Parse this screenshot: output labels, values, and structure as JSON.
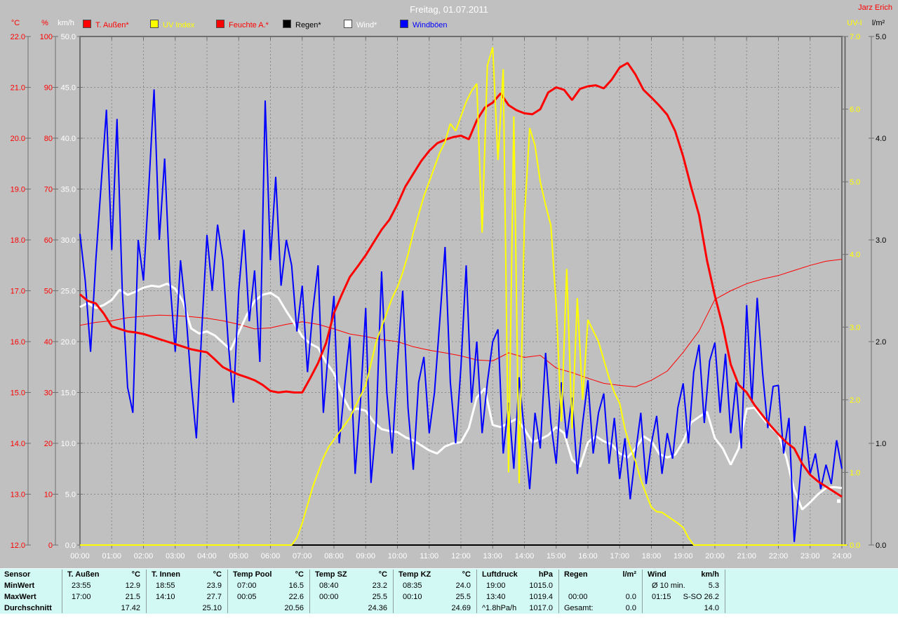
{
  "header": {
    "title": "Freitag, 01.07.2011",
    "author": "Jarz Erich"
  },
  "colors": {
    "background": "#c0c0c0",
    "grid": "#8a8a8a",
    "frame": "#6e6e6e",
    "temp": "#ff0000",
    "humidity": "#ff0000",
    "uv": "#ffff00",
    "rain": "#000000",
    "wind": "#ffffff",
    "gusts": "#0000ff",
    "table_bg": "#d2f9f3",
    "title_text": "#ffffff",
    "author_text": "#ff0000"
  },
  "legend": [
    {
      "label": "T. Außen*",
      "color": "#ff0000"
    },
    {
      "label": "UV Index",
      "color": "#ffff00"
    },
    {
      "label": "Feuchte A.*",
      "color": "#ff0000"
    },
    {
      "label": "Regen*",
      "color": "#000000"
    },
    {
      "label": "Wind*",
      "color": "#ffffff"
    },
    {
      "label": "Windböen",
      "color": "#0000ff"
    }
  ],
  "chart_data": {
    "type": "line",
    "title": "Freitag, 01.07.2011",
    "x_axis": {
      "unit": "time",
      "range_hours": [
        0,
        24
      ],
      "ticks": [
        "00:00",
        "01:00",
        "02:00",
        "03:00",
        "04:00",
        "05:00",
        "06:00",
        "07:00",
        "08:00",
        "09:00",
        "10:00",
        "11:00",
        "12:00",
        "13:00",
        "14:00",
        "15:00",
        "16:00",
        "17:00",
        "18:00",
        "19:00",
        "20:00",
        "21:00",
        "22:00",
        "23:00",
        "24:00"
      ]
    },
    "grid": "dashed, hourly vertical + 10 horizontal divisions",
    "axes": {
      "temp": {
        "unit": "°C",
        "color": "#ff0000",
        "min": 12,
        "max": 22,
        "ticks": [
          "22.0",
          "21.0",
          "20.0",
          "19.0",
          "18.0",
          "17.0",
          "16.0",
          "15.0",
          "14.0",
          "13.0",
          "12.0"
        ]
      },
      "pct": {
        "unit": "%",
        "color": "#ff0000",
        "min": 0,
        "max": 100,
        "ticks": [
          "100",
          "90",
          "80",
          "70",
          "60",
          "50",
          "40",
          "30",
          "20",
          "10",
          "0"
        ]
      },
      "kmh": {
        "unit": "km/h",
        "color": "#ffffff",
        "min": 0,
        "max": 50,
        "ticks": [
          "50.0",
          "45.0",
          "40.0",
          "35.0",
          "30.0",
          "25.0",
          "20.0",
          "15.0",
          "10.0",
          "5.0",
          "0.0"
        ]
      },
      "uv": {
        "unit": "UV-I",
        "color": "#ffff00",
        "min": 0,
        "max": 7,
        "ticks": [
          "7.0",
          "6.0",
          "5.0",
          "4.0",
          "3.0",
          "2.0",
          "1.0",
          "0.0"
        ]
      },
      "lm2": {
        "unit": "l/m²",
        "color": "#000000",
        "min": 0,
        "max": 5,
        "ticks": [
          "5.0",
          "4.0",
          "3.0",
          "2.0",
          "1.0",
          "0.0"
        ]
      }
    },
    "series": [
      {
        "id": "rain",
        "name": "Regen*",
        "color": "#000000",
        "width": 2,
        "axis": "lm2",
        "interval_min": 720,
        "values": [
          0,
          0,
          0
        ]
      },
      {
        "id": "humidity",
        "name": "Feuchte A.*",
        "color": "#ff0000",
        "width": 1,
        "axis": "pct",
        "interval_min": 30,
        "values": [
          43.2,
          43.8,
          44.1,
          44.7,
          45.0,
          45.2,
          45.1,
          44.9,
          44.6,
          44.1,
          43.4,
          42.5,
          42.7,
          43.4,
          43.9,
          43.4,
          42.5,
          41.5,
          41.0,
          40.4,
          40.0,
          39.0,
          38.3,
          37.8,
          37.2,
          36.4,
          36.2,
          37.8,
          36.9,
          37.3,
          34.8,
          33.9,
          32.8,
          31.8,
          31.4,
          31.1,
          32.4,
          34.2,
          37.9,
          42.1,
          48.3,
          50.0,
          51.4,
          52.3,
          53.0,
          54.0,
          55.0,
          55.8,
          56.2
        ]
      },
      {
        "id": "wind",
        "name": "Wind*",
        "color": "#ffffff",
        "width": 3,
        "axis": "kmh",
        "interval_min": 15,
        "values": [
          23.4,
          23.8,
          23.3,
          23.6,
          24.1,
          25.1,
          24.6,
          24.9,
          25.3,
          25.5,
          25.4,
          25.7,
          25.2,
          23.9,
          21.3,
          20.8,
          21.0,
          20.6,
          19.9,
          19.2,
          20.9,
          22.6,
          24.0,
          24.6,
          24.8,
          24.3,
          23.0,
          21.8,
          20.5,
          19.8,
          19.4,
          18.0,
          16.9,
          14.8,
          13.3,
          13.4,
          13.2,
          12.1,
          11.4,
          11.2,
          11.1,
          10.6,
          10.3,
          9.8,
          9.3,
          9.0,
          9.7,
          10.0,
          10.1,
          11.5,
          14.5,
          15.4,
          11.8,
          11.6,
          12.0,
          12.4,
          11.4,
          10.1,
          10.4,
          10.8,
          11.6,
          11.0,
          8.4,
          7.7,
          10.1,
          10.7,
          10.2,
          9.9,
          9.0,
          8.6,
          9.5,
          10.7,
          10.2,
          8.95,
          8.6,
          8.9,
          10.2,
          12.05,
          12.6,
          13.1,
          10.5,
          9.5,
          7.9,
          9.5,
          13.4,
          13.5,
          12.5,
          11.6,
          10.9,
          8.6,
          5.4,
          3.5,
          4.2,
          5.0,
          5.6,
          5.7,
          5.6
        ]
      },
      {
        "id": "gusts",
        "name": "Windböen",
        "color": "#0000ff",
        "width": 2,
        "axis": "kmh",
        "interval_min": 10,
        "values": [
          30.6,
          26,
          19,
          28,
          35.5,
          42.8,
          29,
          41.9,
          25,
          15.5,
          13,
          30,
          26,
          35,
          44.8,
          30,
          38,
          26,
          19,
          28,
          23,
          16,
          10.5,
          21,
          30.5,
          25,
          31.5,
          28,
          20,
          14,
          25,
          31,
          22,
          27,
          18,
          43.7,
          28,
          36.2,
          25.5,
          30,
          27.5,
          21,
          25.5,
          17,
          23,
          27.5,
          13,
          19.5,
          24.5,
          10,
          15.5,
          20.5,
          7,
          14,
          23.3,
          6.1,
          12,
          26.9,
          15,
          9,
          18,
          25,
          13.5,
          7.4,
          16,
          18.5,
          11,
          15,
          22,
          29.3,
          16,
          10,
          17.5,
          27.5,
          14,
          20,
          11,
          16,
          20,
          21.2,
          9,
          14,
          7.5,
          16.5,
          11,
          5.5,
          13,
          9.5,
          18.9,
          12,
          8,
          16,
          10.5,
          14.5,
          7,
          12,
          16.2,
          9,
          13,
          14.9,
          8,
          12.5,
          6.5,
          10.5,
          4.5,
          9,
          13,
          6,
          10,
          12.7,
          7,
          11,
          8.5,
          13.5,
          15.9,
          10,
          17,
          19.7,
          12,
          18.1,
          19.9,
          13,
          18.8,
          11,
          16,
          9.5,
          23.6,
          14,
          24.3,
          17,
          11.5,
          15.6,
          15.7,
          9,
          12.5,
          0.3,
          6,
          11.7,
          7,
          9,
          5.5,
          7.9,
          6,
          10.3,
          7.5
        ]
      },
      {
        "id": "temp",
        "name": "T. Außen*",
        "color": "#ff0000",
        "width": 3,
        "axis": "temp",
        "interval_min": 15,
        "values": [
          16.93,
          16.8,
          16.75,
          16.55,
          16.3,
          16.25,
          16.2,
          16.18,
          16.15,
          16.1,
          16.05,
          16.0,
          15.95,
          15.9,
          15.85,
          15.82,
          15.79,
          15.65,
          15.5,
          15.42,
          15.35,
          15.3,
          15.24,
          15.15,
          15.03,
          15.0,
          15.02,
          15.0,
          15.0,
          15.28,
          15.58,
          15.97,
          16.56,
          16.93,
          17.27,
          17.48,
          17.7,
          17.95,
          18.2,
          18.4,
          18.7,
          19.05,
          19.3,
          19.55,
          19.75,
          19.9,
          19.97,
          20.02,
          20.05,
          19.98,
          20.35,
          20.6,
          20.7,
          20.88,
          20.65,
          20.55,
          20.49,
          20.47,
          20.57,
          20.9,
          21.0,
          20.95,
          20.75,
          20.97,
          21.02,
          21.04,
          20.98,
          21.15,
          21.39,
          21.48,
          21.25,
          20.95,
          20.8,
          20.64,
          20.46,
          20.14,
          19.64,
          19.04,
          18.49,
          17.6,
          16.9,
          16.3,
          15.55,
          15.15,
          15.0,
          14.75,
          14.55,
          14.35,
          14.18,
          14.02,
          13.9,
          13.6,
          13.38,
          13.25,
          13.15,
          13.05,
          12.95
        ]
      },
      {
        "id": "uv",
        "name": "UV Index",
        "color": "#ffff00",
        "width": 2,
        "axis": "uv",
        "interval_min": 10,
        "values": [
          0,
          0,
          0,
          0,
          0,
          0,
          0,
          0,
          0,
          0,
          0,
          0,
          0,
          0,
          0,
          0,
          0,
          0,
          0,
          0,
          0,
          0,
          0,
          0,
          0,
          0,
          0,
          0,
          0,
          0,
          0,
          0,
          0,
          0,
          0,
          0,
          0,
          0,
          0,
          0,
          0,
          0.1,
          0.3,
          0.55,
          0.8,
          1.0,
          1.2,
          1.35,
          1.45,
          1.55,
          1.65,
          1.75,
          1.9,
          2.05,
          2.2,
          2.5,
          2.8,
          3.0,
          3.2,
          3.4,
          3.55,
          3.75,
          4.0,
          4.3,
          4.55,
          4.8,
          5.0,
          5.2,
          5.4,
          5.55,
          5.8,
          5.7,
          5.9,
          6.1,
          6.25,
          6.35,
          4.3,
          6.6,
          6.85,
          5.3,
          6.55,
          1.0,
          5.9,
          0.85,
          4.5,
          5.74,
          5.5,
          5.0,
          4.68,
          4.4,
          3.3,
          1.7,
          3.8,
          1.6,
          3.4,
          2.0,
          3.1,
          2.95,
          2.8,
          2.55,
          2.3,
          2.1,
          1.95,
          1.6,
          1.35,
          1.15,
          0.9,
          0.7,
          0.52,
          0.46,
          0.45,
          0.4,
          0.35,
          0.3,
          0.24,
          0.1,
          0,
          0,
          0,
          0,
          0,
          0,
          0,
          0,
          0,
          0,
          0,
          0,
          0,
          0,
          0,
          0,
          0,
          0,
          0,
          0,
          0,
          0,
          0,
          0,
          0,
          0,
          0,
          0,
          0,
          0
        ]
      }
    ]
  },
  "table": {
    "row_labels": [
      "Sensor",
      "MinWert",
      "MaxWert",
      "Durchschnitt"
    ],
    "columns": [
      {
        "name": "T. Außen",
        "unit": "°C",
        "min_time": "23:55",
        "min_value": "12.9",
        "max_time": "17:00",
        "max_value": "21.5",
        "avg_label": "",
        "avg_value": "17.42"
      },
      {
        "name": "T. Innen",
        "unit": "°C",
        "min_time": "18:55",
        "min_value": "23.9",
        "max_time": "14:10",
        "max_value": "27.7",
        "avg_label": "",
        "avg_value": "25.10"
      },
      {
        "name": "Temp Pool",
        "unit": "°C",
        "min_time": "07:00",
        "min_value": "16.5",
        "max_time": "00:05",
        "max_value": "22.6",
        "avg_label": "",
        "avg_value": "20.56"
      },
      {
        "name": "Temp SZ",
        "unit": "°C",
        "min_time": "08:40",
        "min_value": "23.2",
        "max_time": "00:00",
        "max_value": "25.5",
        "avg_label": "",
        "avg_value": "24.36"
      },
      {
        "name": "Temp KZ",
        "unit": "°C",
        "min_time": "08:35",
        "min_value": "24.0",
        "max_time": "00:10",
        "max_value": "25.5",
        "avg_label": "",
        "avg_value": "24.69"
      },
      {
        "name": "Luftdruck",
        "unit": "hPa",
        "min_time": "19:00",
        "min_value": "1015.0",
        "max_time": "13:40",
        "max_value": "1019.4",
        "avg_label": "^1.8hPa/h",
        "avg_value": "1017.0"
      },
      {
        "name": "Regen",
        "unit": "l/m²",
        "min_time": "",
        "min_value": "",
        "max_time": "00:00",
        "max_value": "0.0",
        "avg_label": "Gesamt:",
        "avg_value": "0.0"
      },
      {
        "name": "Wind",
        "unit": "km/h",
        "min_time": "Ø 10 min.",
        "min_value": "5.3",
        "max_time": "01:15",
        "max_value": "S-SO 26.2",
        "avg_label": "",
        "avg_value": "14.0"
      }
    ]
  }
}
